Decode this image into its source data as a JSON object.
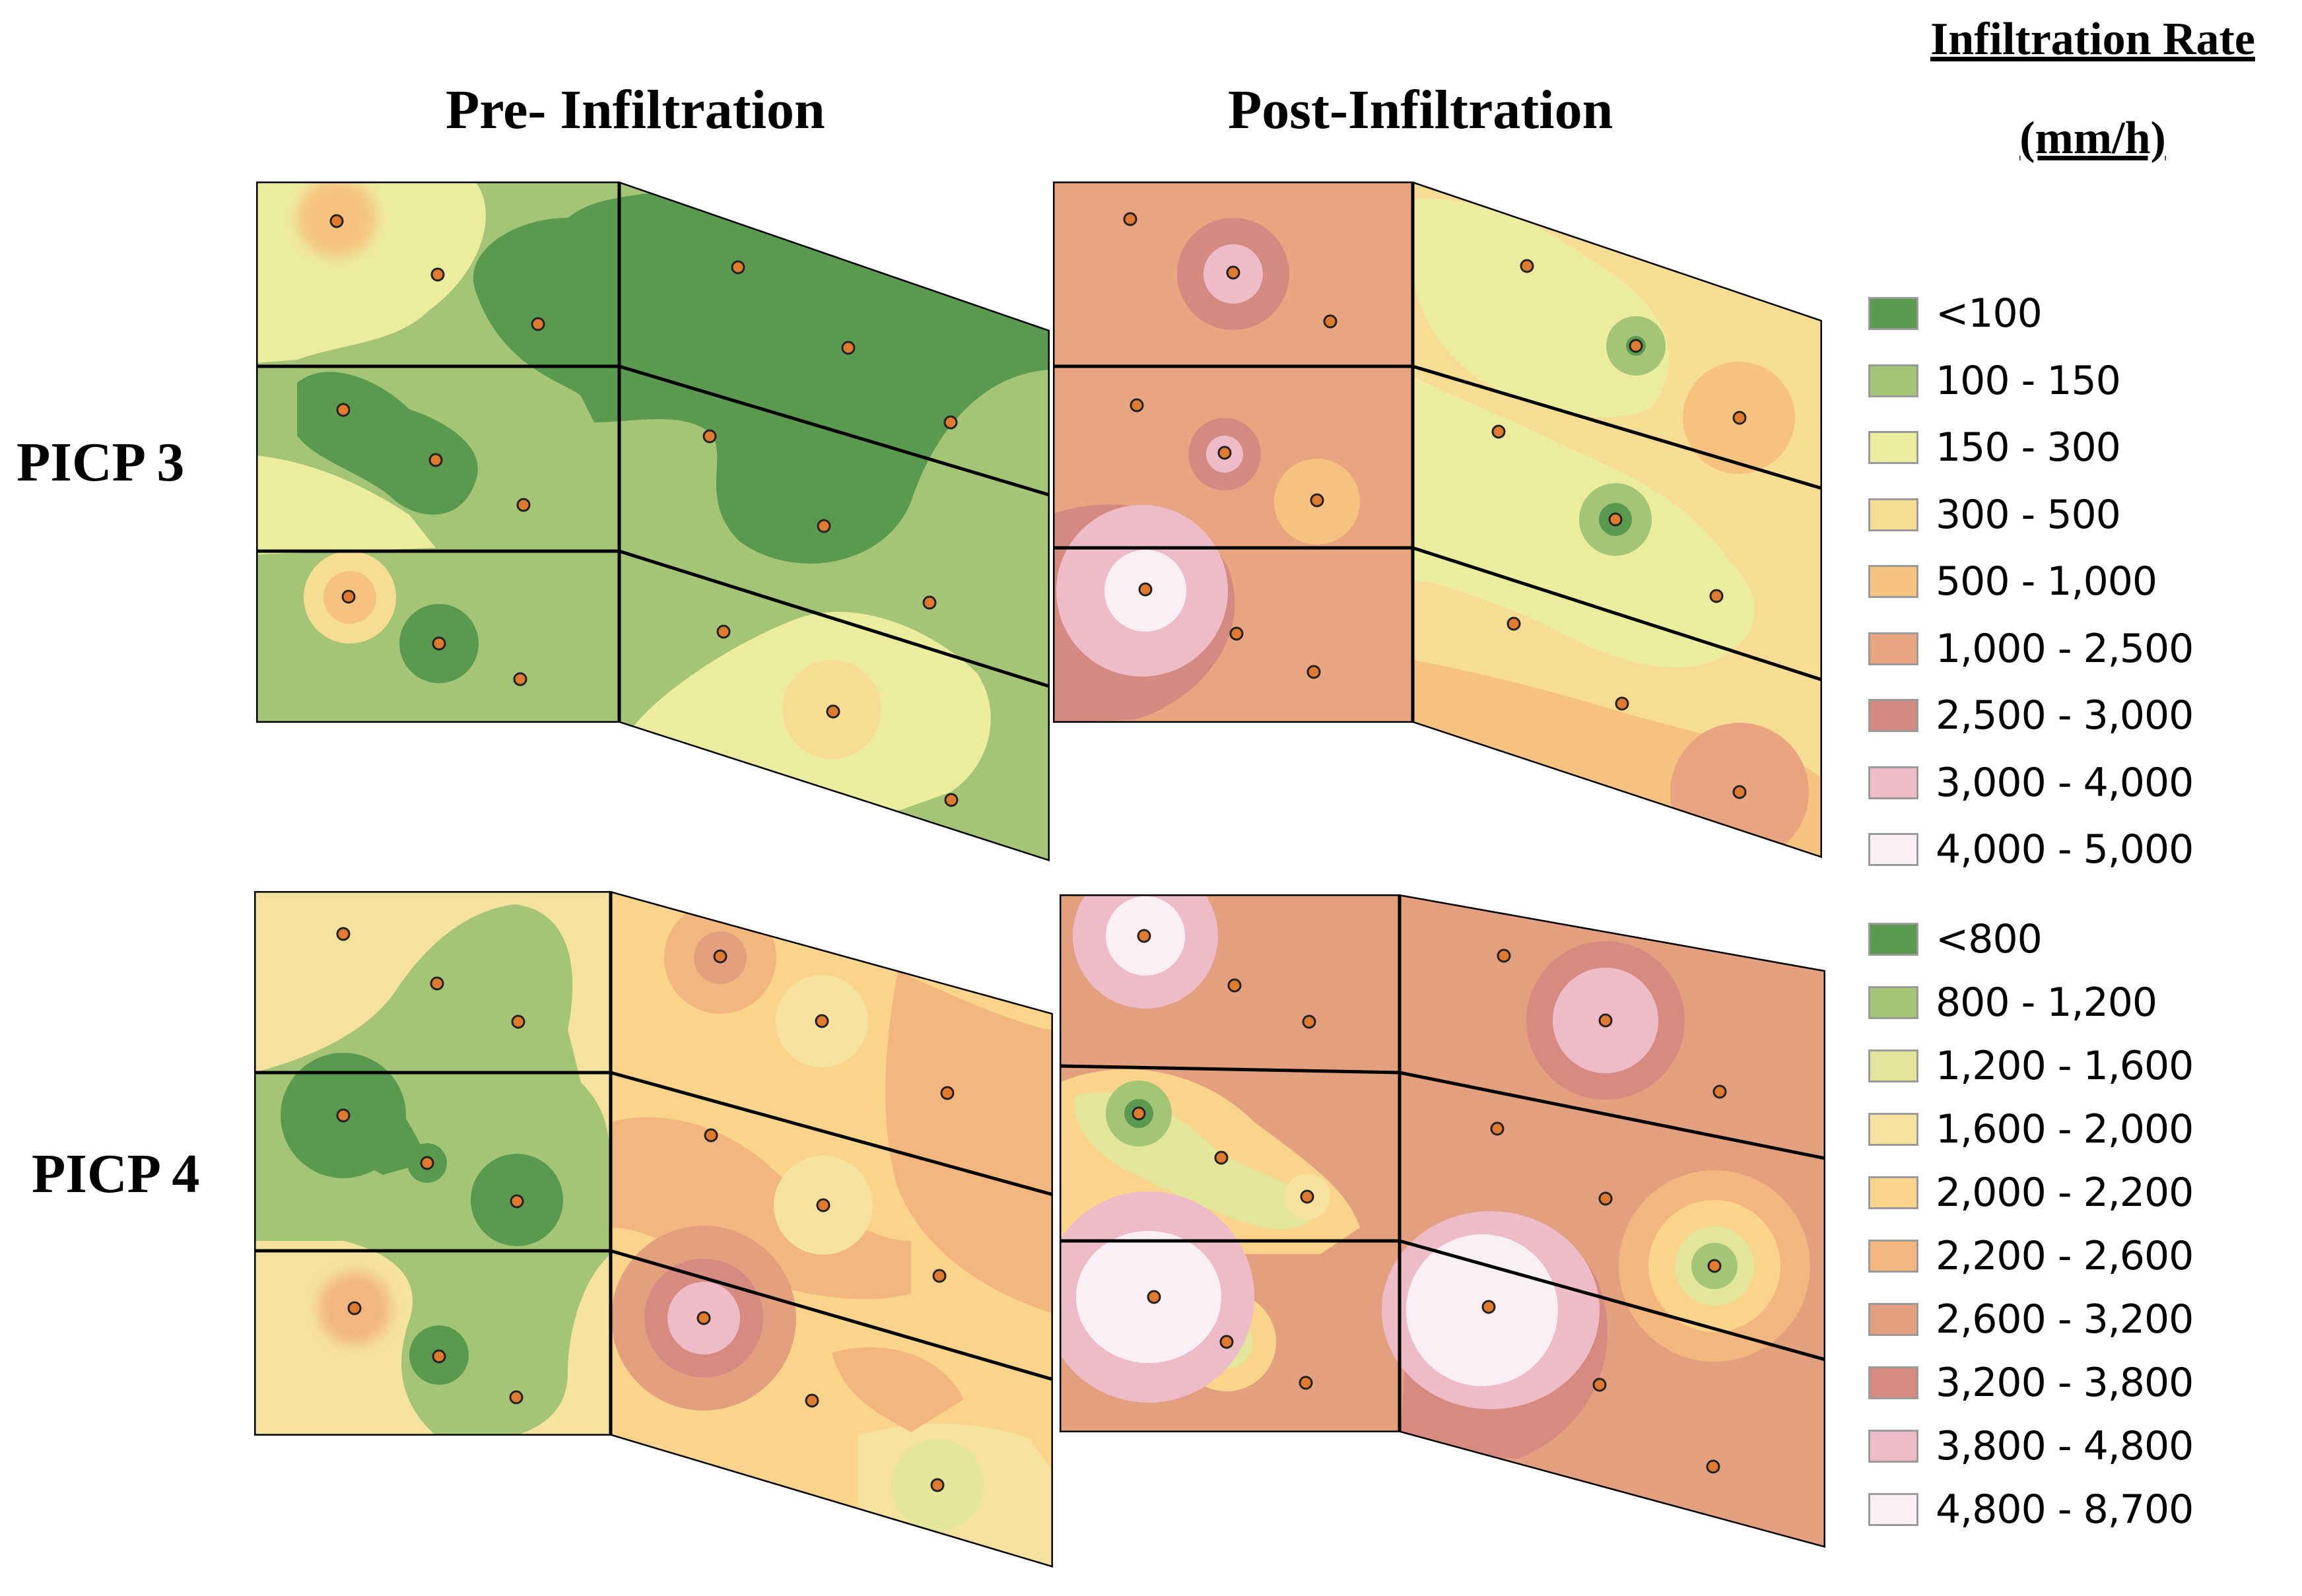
{
  "headings": {
    "pre": "Pre- Infiltration",
    "post": "Post-Infiltration",
    "legend_line1": "Infiltration Rate",
    "legend_line2": "(mm/h)"
  },
  "sites": {
    "picp3": "PICP 3",
    "picp4": "PICP 4"
  },
  "legend_picp3": [
    {
      "label": "<100",
      "color": "#5a9a4f"
    },
    {
      "label": "100 - 150",
      "color": "#a4c476"
    },
    {
      "label": "150 - 300",
      "color": "#ecec9e"
    },
    {
      "label": "300 - 500",
      "color": "#f7dc94"
    },
    {
      "label": "500 - 1,000",
      "color": "#f5c37f"
    },
    {
      "label": "1,000 - 2,500",
      "color": "#e8a57f"
    },
    {
      "label": "2,500 - 3,000",
      "color": "#d48a80"
    },
    {
      "label": "3,000 - 4,000",
      "color": "#eebcc9"
    },
    {
      "label": "4,000 - 5,000",
      "color": "#fbeff6"
    }
  ],
  "legend_picp4": [
    {
      "label": "<800",
      "color": "#5a9a4f"
    },
    {
      "label": "800 - 1,200",
      "color": "#a4c476"
    },
    {
      "label": "1,200 - 1,600",
      "color": "#e2e59a"
    },
    {
      "label": "1,600 - 2,000",
      "color": "#f5e29e"
    },
    {
      "label": "2,000 - 2,200",
      "color": "#f9d48a"
    },
    {
      "label": "2,200 - 2,600",
      "color": "#f2b67e"
    },
    {
      "label": "2,600 - 3,200",
      "color": "#e3a07f"
    },
    {
      "label": "3,200 - 3,800",
      "color": "#d68a80"
    },
    {
      "label": "3,800 - 4,800",
      "color": "#eebcc9"
    },
    {
      "label": "4,800 - 8,700",
      "color": "#fbeff6"
    }
  ]
}
